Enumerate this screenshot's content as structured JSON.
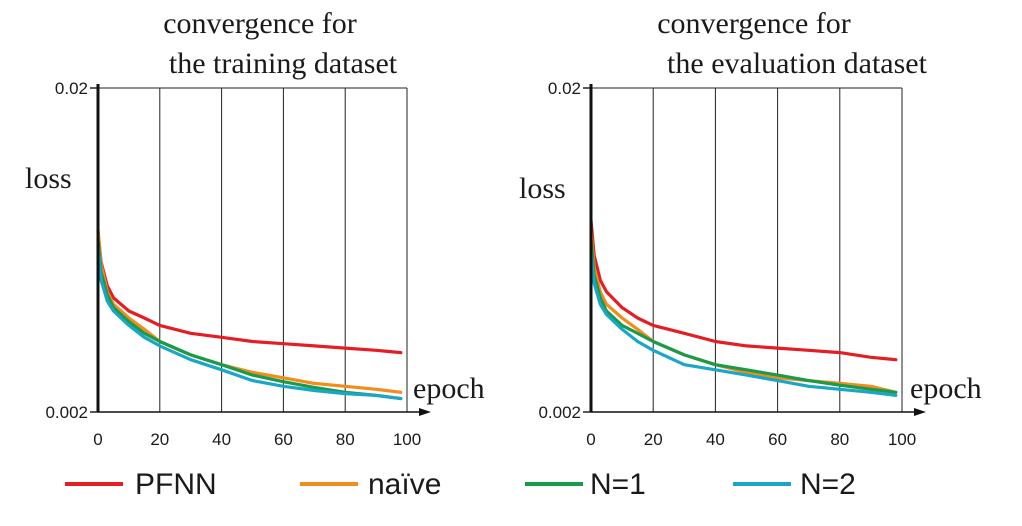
{
  "chart_data": [
    {
      "type": "line",
      "title": [
        "convergence for",
        "the training dataset"
      ],
      "xlabel": "epoch",
      "ylabel": "loss",
      "xlim": [
        0,
        100
      ],
      "ylim": [
        0.002,
        0.02
      ],
      "yscale": "log",
      "xticks": [
        "0",
        "20",
        "40",
        "60",
        "80",
        "100"
      ],
      "yticks": [
        "0.02",
        "0.002"
      ],
      "grid": "vertical",
      "series": [
        {
          "name": "PFNN",
          "x": [
            0,
            1,
            3,
            5,
            10,
            15,
            20,
            30,
            40,
            50,
            60,
            70,
            80,
            90,
            98
          ],
          "values": [
            0.0072,
            0.0058,
            0.0049,
            0.0045,
            0.0041,
            0.0039,
            0.0037,
            0.0035,
            0.0034,
            0.0033,
            0.00325,
            0.0032,
            0.00315,
            0.0031,
            0.00305
          ]
        },
        {
          "name": "naïve",
          "x": [
            0,
            1,
            3,
            5,
            10,
            15,
            20,
            30,
            40,
            50,
            60,
            70,
            80,
            90,
            98
          ],
          "values": [
            0.0073,
            0.0057,
            0.0047,
            0.0043,
            0.0039,
            0.0036,
            0.0033,
            0.003,
            0.0028,
            0.00265,
            0.00255,
            0.00245,
            0.0024,
            0.00235,
            0.0023
          ]
        },
        {
          "name": "N=1",
          "x": [
            0,
            1,
            3,
            5,
            10,
            15,
            20,
            30,
            40,
            50,
            60,
            70,
            80,
            90,
            98
          ],
          "values": [
            0.0068,
            0.0054,
            0.0046,
            0.0042,
            0.0038,
            0.0035,
            0.0033,
            0.003,
            0.0028,
            0.0026,
            0.00248,
            0.00238,
            0.0023,
            0.00225,
            0.0022
          ]
        },
        {
          "name": "N=2",
          "x": [
            0,
            1,
            3,
            5,
            10,
            15,
            20,
            30,
            40,
            50,
            60,
            70,
            80,
            90,
            98
          ],
          "values": [
            0.0065,
            0.0051,
            0.0044,
            0.0041,
            0.0037,
            0.0034,
            0.0032,
            0.0029,
            0.0027,
            0.0025,
            0.0024,
            0.00233,
            0.00228,
            0.00225,
            0.0022
          ]
        }
      ]
    },
    {
      "type": "line",
      "title": [
        "convergence for",
        "the evaluation dataset"
      ],
      "xlabel": "epoch",
      "ylabel": "loss",
      "xlim": [
        0,
        100
      ],
      "ylim": [
        0.002,
        0.02
      ],
      "yscale": "log",
      "xticks": [
        "0",
        "20",
        "40",
        "60",
        "80",
        "100"
      ],
      "yticks": [
        "0.02",
        "0.002"
      ],
      "grid": "vertical",
      "series": [
        {
          "name": "PFNN",
          "x": [
            0,
            1,
            3,
            5,
            10,
            15,
            20,
            30,
            40,
            50,
            60,
            70,
            80,
            90,
            98
          ],
          "values": [
            0.0078,
            0.0061,
            0.0051,
            0.0047,
            0.0042,
            0.0039,
            0.0037,
            0.0035,
            0.0033,
            0.0032,
            0.00315,
            0.0031,
            0.00305,
            0.00295,
            0.0029
          ]
        },
        {
          "name": "naïve",
          "x": [
            0,
            1,
            3,
            5,
            10,
            15,
            20,
            30,
            40,
            50,
            60,
            70,
            80,
            90,
            98
          ],
          "values": [
            0.0072,
            0.0056,
            0.0047,
            0.0043,
            0.0039,
            0.0036,
            0.0033,
            0.003,
            0.0028,
            0.00265,
            0.00255,
            0.0025,
            0.00245,
            0.0024,
            0.0023
          ]
        },
        {
          "name": "N=1",
          "x": [
            0,
            1,
            3,
            5,
            10,
            15,
            20,
            30,
            40,
            50,
            60,
            70,
            80,
            90,
            98
          ],
          "values": [
            0.0068,
            0.0053,
            0.0045,
            0.0041,
            0.0037,
            0.0035,
            0.0033,
            0.003,
            0.0028,
            0.0027,
            0.0026,
            0.0025,
            0.00242,
            0.00235,
            0.0023
          ]
        },
        {
          "name": "N=2",
          "x": [
            0,
            1,
            3,
            5,
            10,
            15,
            20,
            30,
            40,
            50,
            60,
            70,
            80,
            90,
            98
          ],
          "values": [
            0.0063,
            0.005,
            0.0043,
            0.004,
            0.0036,
            0.0033,
            0.0031,
            0.0028,
            0.0027,
            0.0026,
            0.0025,
            0.0024,
            0.00235,
            0.0023,
            0.00225
          ]
        }
      ]
    }
  ],
  "legend": [
    {
      "label": "PFNN",
      "color": "#e31e24"
    },
    {
      "label": "naïve",
      "color": "#f28c1c"
    },
    {
      "label": "N=1",
      "color": "#1a9b4a"
    },
    {
      "label": "N=2",
      "color": "#1aa6c8"
    }
  ]
}
